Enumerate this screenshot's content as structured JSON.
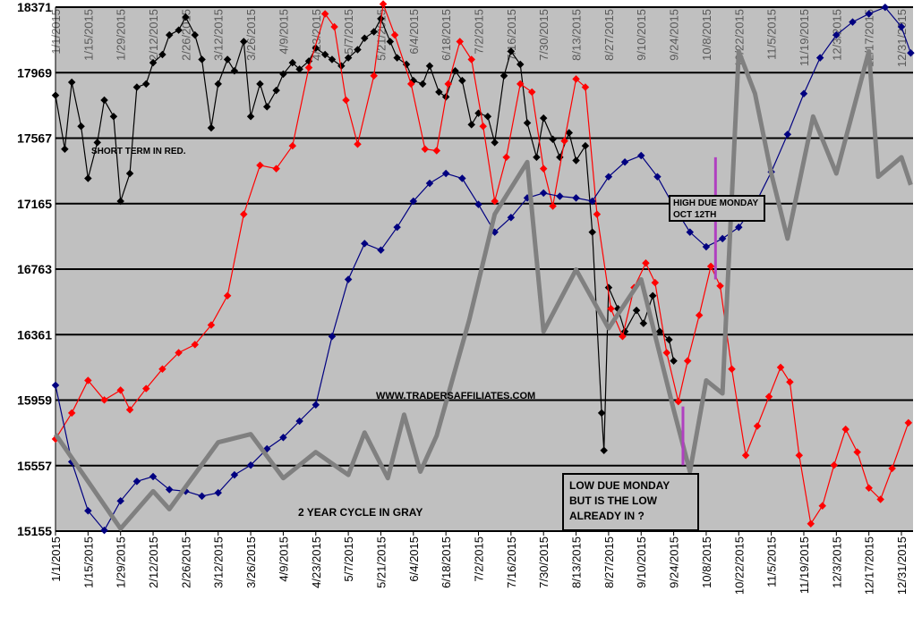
{
  "chart_data": {
    "type": "line",
    "ylim": [
      15155,
      18371
    ],
    "yticks": [
      "18371",
      "17969",
      "17567",
      "17165",
      "16763",
      "16361",
      "15959",
      "15557",
      "15155"
    ],
    "xticks": [
      "1/1/2015",
      "1/15/2015",
      "1/29/2015",
      "2/12/2015",
      "2/26/2015",
      "3/12/2015",
      "3/26/2015",
      "4/9/2015",
      "4/23/2015",
      "5/7/2015",
      "5/21/2015",
      "6/4/2015",
      "6/18/2015",
      "7/2/2015",
      "7/16/2015",
      "7/30/2015",
      "8/13/2015",
      "8/27/2015",
      "9/10/2015",
      "9/24/2015",
      "10/8/2015",
      "10/22/2015",
      "11/5/2015",
      "11/19/2015",
      "12/3/2015",
      "12/17/2015",
      "12/31/2015"
    ],
    "grid": true,
    "top_labels": [
      "1/1/2015",
      "1/15/2015",
      "1/29/2015",
      "2/12/2015",
      "2/26/2015",
      "3/12/2015",
      "3/26/2015",
      "4/9/2015",
      "4/23/2015",
      "5/7/2015",
      "5/21/2015",
      "6/4/2015",
      "6/18/2015",
      "7/2/2015",
      "7/16/2015",
      "7/30/2015",
      "8/13/2015",
      "8/27/2015",
      "9/10/2015",
      "9/24/2015",
      "10/8/2015",
      "10/22/2015",
      "11/5/2015",
      "11/19/2015",
      "12/3/2015",
      "12/17/2015",
      "12/31/2015"
    ],
    "annotations": {
      "short_term": "SHORT TERM IN RED.",
      "website": "WWW.TRADERSAFFILIATES.COM",
      "cycle": "2 YEAR CYCLE IN GRAY",
      "high_box": [
        "HIGH DUE MONDAY",
        "OCT 12TH"
      ],
      "low_box": [
        "LOW DUE MONDAY",
        "BUT IS THE LOW",
        "ALREADY IN ?"
      ]
    },
    "markers": [
      {
        "date": "10/12/2015",
        "from": 16700,
        "to": 17450,
        "color": "#b040c0"
      },
      {
        "date": "9/28/2015",
        "from": 15560,
        "to": 15920,
        "color": "#b040c0"
      }
    ],
    "series": [
      {
        "color": "#000000",
        "style": "markers",
        "points": [
          [
            "1/1/2015",
            17830
          ],
          [
            "1/5/2015",
            17500
          ],
          [
            "1/8/2015",
            17910
          ],
          [
            "1/12/2015",
            17640
          ],
          [
            "1/15/2015",
            17320
          ],
          [
            "1/19/2015",
            17540
          ],
          [
            "1/22/2015",
            17800
          ],
          [
            "1/26/2015",
            17700
          ],
          [
            "1/29/2015",
            17180
          ],
          [
            "2/2/2015",
            17350
          ],
          [
            "2/5/2015",
            17880
          ],
          [
            "2/9/2015",
            17900
          ],
          [
            "2/12/2015",
            18030
          ],
          [
            "2/16/2015",
            18080
          ],
          [
            "2/19/2015",
            18200
          ],
          [
            "2/23/2015",
            18230
          ],
          [
            "2/26/2015",
            18310
          ],
          [
            "3/2/2015",
            18200
          ],
          [
            "3/5/2015",
            18050
          ],
          [
            "3/9/2015",
            17630
          ],
          [
            "3/12/2015",
            17900
          ],
          [
            "3/16/2015",
            18050
          ],
          [
            "3/19/2015",
            17980
          ],
          [
            "3/23/2015",
            18160
          ],
          [
            "3/26/2015",
            17700
          ],
          [
            "3/30/2015",
            17900
          ],
          [
            "4/2/2015",
            17760
          ],
          [
            "4/6/2015",
            17860
          ],
          [
            "4/9/2015",
            17960
          ],
          [
            "4/13/2015",
            18030
          ],
          [
            "4/16/2015",
            17990
          ],
          [
            "4/20/2015",
            18040
          ],
          [
            "4/23/2015",
            18120
          ],
          [
            "4/27/2015",
            18080
          ],
          [
            "4/30/2015",
            18050
          ],
          [
            "5/4/2015",
            18010
          ],
          [
            "5/7/2015",
            18060
          ],
          [
            "5/11/2015",
            18110
          ],
          [
            "5/14/2015",
            18180
          ],
          [
            "5/18/2015",
            18220
          ],
          [
            "5/21/2015",
            18300
          ],
          [
            "5/25/2015",
            18160
          ],
          [
            "5/28/2015",
            18060
          ],
          [
            "6/1/2015",
            18020
          ],
          [
            "6/4/2015",
            17920
          ],
          [
            "6/8/2015",
            17900
          ],
          [
            "6/11/2015",
            18010
          ],
          [
            "6/15/2015",
            17850
          ],
          [
            "6/18/2015",
            17820
          ],
          [
            "6/22/2015",
            17980
          ],
          [
            "6/25/2015",
            17920
          ],
          [
            "6/29/2015",
            17650
          ],
          [
            "7/2/2015",
            17720
          ],
          [
            "7/6/2015",
            17700
          ],
          [
            "7/9/2015",
            17540
          ],
          [
            "7/13/2015",
            17950
          ],
          [
            "7/16/2015",
            18100
          ],
          [
            "7/20/2015",
            18020
          ],
          [
            "7/23/2015",
            17660
          ],
          [
            "7/27/2015",
            17450
          ],
          [
            "7/30/2015",
            17690
          ],
          [
            "8/3/2015",
            17560
          ],
          [
            "8/6/2015",
            17450
          ],
          [
            "8/10/2015",
            17600
          ],
          [
            "8/13/2015",
            17430
          ],
          [
            "8/17/2015",
            17520
          ],
          [
            "8/20/2015",
            16990
          ],
          [
            "8/24/2015",
            15880
          ],
          [
            "8/25/2015",
            15650
          ],
          [
            "8/27/2015",
            16650
          ],
          [
            "8/31/2015",
            16520
          ],
          [
            "9/3/2015",
            16380
          ],
          [
            "9/8/2015",
            16510
          ],
          [
            "9/11/2015",
            16430
          ],
          [
            "9/15/2015",
            16600
          ],
          [
            "9/18/2015",
            16380
          ],
          [
            "9/22/2015",
            16330
          ],
          [
            "9/24/2015",
            16200
          ]
        ]
      },
      {
        "color": "#ff0000",
        "style": "markers",
        "points": [
          [
            "1/1/2015",
            15720
          ],
          [
            "1/8/2015",
            15880
          ],
          [
            "1/15/2015",
            16080
          ],
          [
            "1/22/2015",
            15960
          ],
          [
            "1/29/2015",
            16020
          ],
          [
            "2/2/2015",
            15900
          ],
          [
            "2/9/2015",
            16030
          ],
          [
            "2/16/2015",
            16150
          ],
          [
            "2/23/2015",
            16250
          ],
          [
            "3/2/2015",
            16300
          ],
          [
            "3/9/2015",
            16420
          ],
          [
            "3/16/2015",
            16600
          ],
          [
            "3/23/2015",
            17100
          ],
          [
            "3/30/2015",
            17400
          ],
          [
            "4/6/2015",
            17380
          ],
          [
            "4/13/2015",
            17520
          ],
          [
            "4/20/2015",
            18000
          ],
          [
            "4/27/2015",
            18330
          ],
          [
            "5/1/2015",
            18250
          ],
          [
            "5/6/2015",
            17800
          ],
          [
            "5/11/2015",
            17530
          ],
          [
            "5/18/2015",
            17950
          ],
          [
            "5/22/2015",
            18390
          ],
          [
            "5/27/2015",
            18200
          ],
          [
            "6/3/2015",
            17900
          ],
          [
            "6/9/2015",
            17500
          ],
          [
            "6/14/2015",
            17490
          ],
          [
            "6/19/2015",
            17900
          ],
          [
            "6/24/2015",
            18160
          ],
          [
            "6/29/2015",
            18050
          ],
          [
            "7/4/2015",
            17640
          ],
          [
            "7/9/2015",
            17180
          ],
          [
            "7/14/2015",
            17450
          ],
          [
            "7/20/2015",
            17900
          ],
          [
            "7/25/2015",
            17850
          ],
          [
            "7/30/2015",
            17380
          ],
          [
            "8/3/2015",
            17150
          ],
          [
            "8/8/2015",
            17550
          ],
          [
            "8/13/2015",
            17930
          ],
          [
            "8/17/2015",
            17880
          ],
          [
            "8/22/2015",
            17100
          ],
          [
            "8/28/2015",
            16520
          ],
          [
            "9/2/2015",
            16350
          ],
          [
            "9/7/2015",
            16650
          ],
          [
            "9/12/2015",
            16800
          ],
          [
            "9/16/2015",
            16680
          ],
          [
            "9/21/2015",
            16250
          ],
          [
            "9/26/2015",
            15950
          ],
          [
            "9/30/2015",
            16200
          ],
          [
            "10/5/2015",
            16480
          ],
          [
            "10/10/2015",
            16780
          ],
          [
            "10/14/2015",
            16660
          ],
          [
            "10/19/2015",
            16150
          ],
          [
            "10/25/2015",
            15620
          ],
          [
            "10/30/2015",
            15800
          ],
          [
            "11/4/2015",
            15980
          ],
          [
            "11/9/2015",
            16160
          ],
          [
            "11/13/2015",
            16070
          ],
          [
            "11/17/2015",
            15620
          ],
          [
            "11/22/2015",
            15200
          ],
          [
            "11/27/2015",
            15310
          ],
          [
            "12/2/2015",
            15560
          ],
          [
            "12/7/2015",
            15780
          ],
          [
            "12/12/2015",
            15640
          ],
          [
            "12/17/2015",
            15420
          ],
          [
            "12/22/2015",
            15350
          ],
          [
            "12/27/2015",
            15540
          ],
          [
            "1/3/2016",
            15820
          ]
        ]
      },
      {
        "color": "#000080",
        "style": "markers",
        "points": [
          [
            "1/1/2015",
            16050
          ],
          [
            "1/8/2015",
            15580
          ],
          [
            "1/15/2015",
            15280
          ],
          [
            "1/22/2015",
            15160
          ],
          [
            "1/29/2015",
            15340
          ],
          [
            "2/5/2015",
            15460
          ],
          [
            "2/12/2015",
            15490
          ],
          [
            "2/19/2015",
            15410
          ],
          [
            "2/26/2015",
            15400
          ],
          [
            "3/5/2015",
            15370
          ],
          [
            "3/12/2015",
            15390
          ],
          [
            "3/19/2015",
            15500
          ],
          [
            "3/26/2015",
            15560
          ],
          [
            "4/2/2015",
            15660
          ],
          [
            "4/9/2015",
            15730
          ],
          [
            "4/16/2015",
            15830
          ],
          [
            "4/23/2015",
            15930
          ],
          [
            "4/30/2015",
            16350
          ],
          [
            "5/7/2015",
            16700
          ],
          [
            "5/14/2015",
            16920
          ],
          [
            "5/21/2015",
            16880
          ],
          [
            "5/28/2015",
            17020
          ],
          [
            "6/4/2015",
            17180
          ],
          [
            "6/11/2015",
            17290
          ],
          [
            "6/18/2015",
            17350
          ],
          [
            "6/25/2015",
            17320
          ],
          [
            "7/2/2015",
            17160
          ],
          [
            "7/9/2015",
            16990
          ],
          [
            "7/16/2015",
            17080
          ],
          [
            "7/23/2015",
            17200
          ],
          [
            "7/30/2015",
            17230
          ],
          [
            "8/6/2015",
            17210
          ],
          [
            "8/13/2015",
            17200
          ],
          [
            "8/20/2015",
            17180
          ],
          [
            "8/27/2015",
            17330
          ],
          [
            "9/3/2015",
            17420
          ],
          [
            "9/10/2015",
            17460
          ],
          [
            "9/17/2015",
            17330
          ],
          [
            "9/24/2015",
            17150
          ],
          [
            "10/1/2015",
            16990
          ],
          [
            "10/8/2015",
            16900
          ],
          [
            "10/15/2015",
            16950
          ],
          [
            "10/22/2015",
            17020
          ],
          [
            "10/29/2015",
            17160
          ],
          [
            "11/5/2015",
            17360
          ],
          [
            "11/12/2015",
            17590
          ],
          [
            "11/19/2015",
            17840
          ],
          [
            "11/26/2015",
            18060
          ],
          [
            "12/3/2015",
            18200
          ],
          [
            "12/10/2015",
            18280
          ],
          [
            "12/17/2015",
            18330
          ],
          [
            "12/24/2015",
            18370
          ],
          [
            "12/31/2015",
            18250
          ],
          [
            "1/4/2016",
            18090
          ]
        ]
      },
      {
        "color": "#808080",
        "style": "thick",
        "points": [
          [
            "1/1/2015",
            15750
          ],
          [
            "1/29/2015",
            15170
          ],
          [
            "2/12/2015",
            15400
          ],
          [
            "2/19/2015",
            15290
          ],
          [
            "3/12/2015",
            15700
          ],
          [
            "3/26/2015",
            15750
          ],
          [
            "4/9/2015",
            15480
          ],
          [
            "4/23/2015",
            15640
          ],
          [
            "5/7/2015",
            15500
          ],
          [
            "5/14/2015",
            15760
          ],
          [
            "5/24/2015",
            15480
          ],
          [
            "5/31/2015",
            15870
          ],
          [
            "6/7/2015",
            15520
          ],
          [
            "6/14/2015",
            15740
          ],
          [
            "6/28/2015",
            16450
          ],
          [
            "7/9/2015",
            17100
          ],
          [
            "7/23/2015",
            17420
          ],
          [
            "7/30/2015",
            16380
          ],
          [
            "8/13/2015",
            16760
          ],
          [
            "8/27/2015",
            16400
          ],
          [
            "9/10/2015",
            16700
          ],
          [
            "9/24/2015",
            15900
          ],
          [
            "10/1/2015",
            15520
          ],
          [
            "10/8/2015",
            16080
          ],
          [
            "10/15/2015",
            16000
          ],
          [
            "10/22/2015",
            18100
          ],
          [
            "10/29/2015",
            17840
          ],
          [
            "11/5/2015",
            17350
          ],
          [
            "11/12/2015",
            16950
          ],
          [
            "11/23/2015",
            17700
          ],
          [
            "12/3/2015",
            17350
          ],
          [
            "12/17/2015",
            18100
          ],
          [
            "12/21/2015",
            17330
          ],
          [
            "12/31/2015",
            17450
          ],
          [
            "1/4/2016",
            17280
          ]
        ]
      }
    ]
  }
}
